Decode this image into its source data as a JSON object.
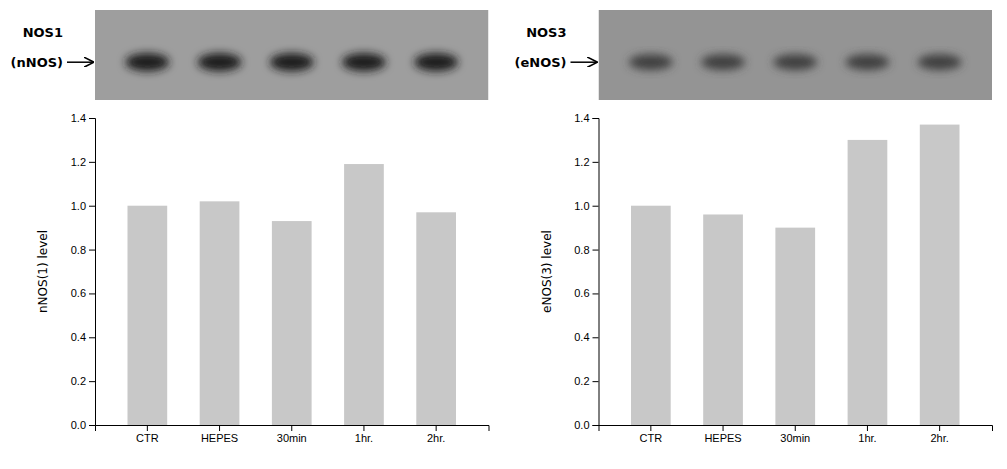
{
  "chart_data": [
    {
      "type": "bar",
      "annotations": [
        "NOS1",
        "(nNOS)"
      ],
      "categories": [
        "CTR",
        "HEPES",
        "30min",
        "1hr.",
        "2hr."
      ],
      "values": [
        1.0,
        1.02,
        0.93,
        1.19,
        0.97
      ],
      "ylabel": "nNOS(1) level",
      "color": "#c8c8c8",
      "ylim": [
        0.0,
        1.4
      ],
      "yticks": [
        {
          "value": 0.0,
          "label": "0.0"
        },
        0.2,
        0.4,
        0.6,
        0.8,
        {
          "value": 1.0,
          "label": "1.0"
        },
        1.2,
        1.4
      ],
      "grid": false
    },
    {
      "type": "bar",
      "annotations": [
        "NOS3",
        "(eNOS)"
      ],
      "categories": [
        "CTR",
        "HEPES",
        "30min",
        "1hr.",
        "2hr."
      ],
      "values": [
        1.0,
        0.96,
        0.9,
        1.3,
        1.37
      ],
      "ylabel": "eNOS(3) level",
      "color": "#c8c8c8",
      "ylim": [
        0.0,
        1.4
      ],
      "yticks": [
        {
          "value": 0.0,
          "label": "0.0"
        },
        0.2,
        0.4,
        0.6,
        0.8,
        {
          "value": 1.0,
          "label": "1.0"
        },
        1.2,
        1.4
      ],
      "grid": false
    }
  ]
}
